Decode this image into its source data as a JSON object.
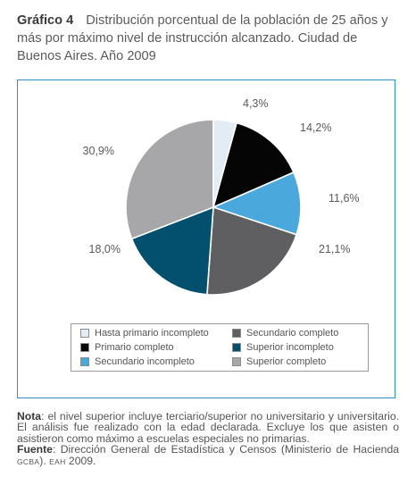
{
  "title": {
    "number": "Gráfico 4",
    "text": "Distribución porcentual de la población de 25 años y más por máximo nivel de instrucción alcanzado. Ciudad de Buenos Aires. Año 2009"
  },
  "chart_data": {
    "type": "pie",
    "slices": [
      {
        "label": "Hasta primario incompleto",
        "value": 4.3,
        "display": "4,3%",
        "color": "#e3ebf5"
      },
      {
        "label": "Primario completo",
        "value": 14.2,
        "display": "14,2%",
        "color": "#050505"
      },
      {
        "label": "Secundario incompleto",
        "value": 11.6,
        "display": "11,6%",
        "color": "#4ba8dc"
      },
      {
        "label": "Secundario completo",
        "value": 21.1,
        "display": "21,1%",
        "color": "#5f5f61"
      },
      {
        "label": "Superior incompleto",
        "value": 18.0,
        "display": "18,0%",
        "color": "#034f6e"
      },
      {
        "label": "Superior completo",
        "value": 30.9,
        "display": "30,9%",
        "color": "#a7a7a9"
      }
    ],
    "start": "12 o'clock",
    "direction": "clockwise",
    "legend_placement": "bottom",
    "legend_columns": [
      [
        "Hasta primario incompleto",
        "Primario completo",
        "Secundario incompleto"
      ],
      [
        "Secundario completo",
        "Superior incompleto",
        "Superior completo"
      ]
    ]
  },
  "notes": {
    "nota_label": "Nota",
    "nota_text": ": el nivel superior incluye terciario/superior no universitario y universitario. El análisis fue realizado con la edad declarada. Excluye los que asisten o asistieron como máximo a escuelas especiales no primarias.",
    "fuente_label": "Fuente",
    "fuente_text": ": Dirección General de Estadística y Censos (Ministerio de Hacienda ",
    "fuente_gcba": "GCBA",
    "fuente_sep": "). ",
    "fuente_eah": "EAH",
    "fuente_year": " 2009."
  },
  "colors": {
    "frame_border": "#2f8fc9",
    "text": "#5a5a5a"
  }
}
